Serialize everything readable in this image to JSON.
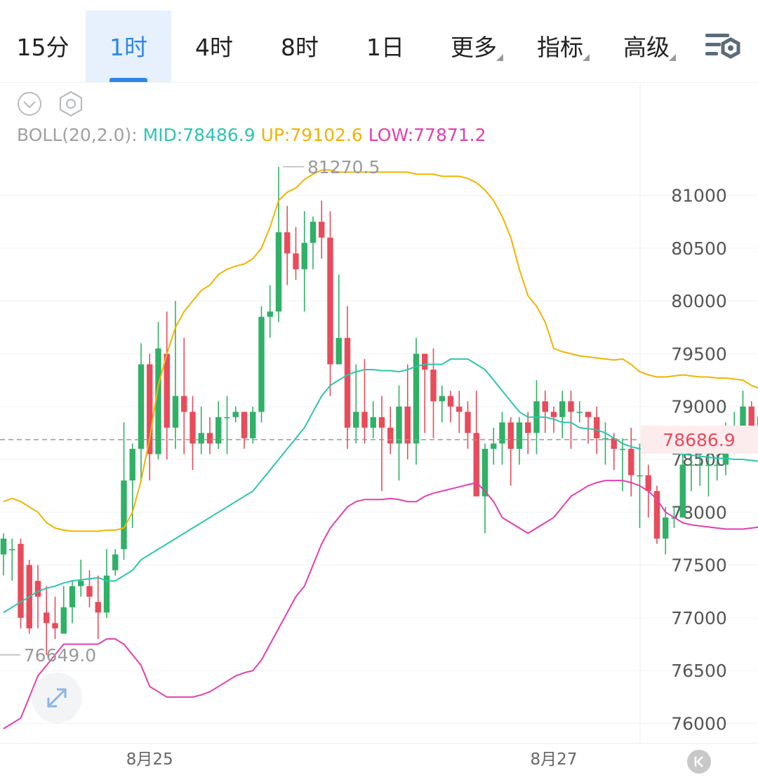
{
  "tabs": [
    {
      "label": "15分",
      "active": false,
      "dropdown": false
    },
    {
      "label": "1时",
      "active": true,
      "dropdown": false
    },
    {
      "label": "4时",
      "active": false,
      "dropdown": false
    },
    {
      "label": "8时",
      "active": false,
      "dropdown": false
    },
    {
      "label": "1日",
      "active": false,
      "dropdown": false
    },
    {
      "label": "更多",
      "active": false,
      "dropdown": true
    },
    {
      "label": "指标",
      "active": false,
      "dropdown": true
    },
    {
      "label": "高级",
      "active": false,
      "dropdown": true
    }
  ],
  "icons": {
    "settings": "chart-settings-icon",
    "collapse": "chevron-down-icon",
    "hexagon": "hexagon-settings-icon",
    "expand": "expand-icon",
    "scroll_latest": "scroll-to-latest-icon"
  },
  "boll": {
    "label": "BOLL(20,2.0):",
    "mid": "MID:78486.9",
    "up": "UP:79102.6",
    "low": "LOW:77871.2"
  },
  "colors": {
    "up_candle": "#2fb166",
    "down_candle": "#e84b5a",
    "mid": "#2cc5b0",
    "upper": "#f0b400",
    "lower": "#e040b0",
    "active_tab": "#2f86e9",
    "price_tag": "#e84b5a"
  },
  "chart_data": {
    "type": "candlestick",
    "indicator": "BOLL(20,2.0)",
    "y_ticks": [
      76000,
      76500,
      77000,
      77500,
      78000,
      78500,
      79000,
      79500,
      80000,
      80500,
      81000
    ],
    "x_labels": [
      "8月25",
      "8月27"
    ],
    "ylim": [
      75900,
      81500
    ],
    "current_price": 78686.9,
    "current_price_label": "78686.9",
    "high_marker": 81270.5,
    "high_label": "81270.5",
    "low_marker": 76649.0,
    "low_label": "76649.0",
    "candles": [
      [
        77600,
        77750,
        77400,
        77800
      ],
      [
        77650,
        77650,
        77350,
        77750
      ],
      [
        77700,
        77000,
        76900,
        77750
      ],
      [
        77500,
        76900,
        76850,
        77550
      ],
      [
        77350,
        77200,
        76900,
        77500
      ],
      [
        77050,
        76950,
        76650,
        77300
      ],
      [
        76950,
        76900,
        76800,
        77200
      ],
      [
        76850,
        77100,
        76850,
        77300
      ],
      [
        77100,
        77300,
        76950,
        77350
      ],
      [
        77300,
        77350,
        77200,
        77550
      ],
      [
        77300,
        77200,
        77100,
        77450
      ],
      [
        77150,
        77050,
        76800,
        77400
      ],
      [
        77050,
        77400,
        77000,
        77650
      ],
      [
        77450,
        77600,
        77400,
        77650
      ],
      [
        77650,
        78300,
        77550,
        78850
      ],
      [
        78300,
        78600,
        77850,
        78650
      ],
      [
        78600,
        79400,
        78300,
        79600
      ],
      [
        79400,
        78550,
        78300,
        79500
      ],
      [
        78550,
        79550,
        78500,
        79800
      ],
      [
        79500,
        78800,
        78500,
        79900
      ],
      [
        78800,
        79100,
        78600,
        80000
      ],
      [
        79100,
        78950,
        78550,
        79650
      ],
      [
        78950,
        78650,
        78400,
        79100
      ],
      [
        78650,
        78750,
        78550,
        79000
      ],
      [
        78750,
        78650,
        78550,
        78900
      ],
      [
        78650,
        78900,
        78600,
        79050
      ],
      [
        78900,
        78900,
        78550,
        79100
      ],
      [
        78900,
        78950,
        78850,
        79000
      ],
      [
        78950,
        78700,
        78600,
        78950
      ],
      [
        78700,
        78950,
        78650,
        79000
      ],
      [
        78950,
        79850,
        78850,
        79950
      ],
      [
        79850,
        79900,
        79650,
        80150
      ],
      [
        79900,
        80650,
        79800,
        81270.5
      ],
      [
        80650,
        80450,
        80150,
        80900
      ],
      [
        80450,
        80300,
        80200,
        80700
      ],
      [
        80300,
        80550,
        79900,
        80850
      ],
      [
        80550,
        80750,
        80300,
        80800
      ],
      [
        80750,
        80600,
        80400,
        80950
      ],
      [
        80600,
        79400,
        79100,
        80850
      ],
      [
        79400,
        79650,
        79400,
        80250
      ],
      [
        79650,
        78800,
        78600,
        79950
      ],
      [
        78800,
        78950,
        78650,
        79400
      ],
      [
        78950,
        78800,
        78650,
        79450
      ],
      [
        78800,
        78900,
        78700,
        79050
      ],
      [
        78900,
        78800,
        78200,
        79100
      ],
      [
        78800,
        78650,
        78550,
        79000
      ],
      [
        78650,
        79000,
        78300,
        79200
      ],
      [
        79000,
        78650,
        78500,
        79400
      ],
      [
        78650,
        79500,
        78450,
        79650
      ],
      [
        79500,
        79350,
        78750,
        79500
      ],
      [
        79350,
        79050,
        78700,
        79550
      ],
      [
        79050,
        79100,
        78850,
        79200
      ],
      [
        79100,
        79000,
        78850,
        79150
      ],
      [
        79000,
        78950,
        78750,
        79150
      ],
      [
        78950,
        78750,
        78600,
        79050
      ],
      [
        78750,
        78150,
        78150,
        79150
      ],
      [
        78150,
        78600,
        77800,
        78650
      ],
      [
        78600,
        78650,
        78450,
        78800
      ],
      [
        78650,
        78850,
        78450,
        78950
      ],
      [
        78850,
        78600,
        78250,
        78900
      ],
      [
        78600,
        78850,
        78450,
        78900
      ],
      [
        78850,
        78750,
        78550,
        78950
      ],
      [
        78750,
        79050,
        78550,
        79250
      ],
      [
        79050,
        78950,
        78750,
        79150
      ],
      [
        78950,
        78900,
        78750,
        79000
      ],
      [
        78900,
        79050,
        78700,
        79150
      ],
      [
        79050,
        78950,
        78600,
        79150
      ],
      [
        78950,
        78950,
        78850,
        79050
      ],
      [
        78950,
        78900,
        78650,
        78950
      ],
      [
        78900,
        78700,
        78550,
        79000
      ],
      [
        78700,
        78700,
        78450,
        78850
      ],
      [
        78700,
        78600,
        78400,
        78750
      ],
      [
        78600,
        78600,
        78200,
        78700
      ],
      [
        78600,
        78350,
        78150,
        78800
      ],
      [
        78350,
        78350,
        77850,
        78650
      ],
      [
        78350,
        78200,
        77950,
        78450
      ],
      [
        78200,
        77750,
        77700,
        78250
      ],
      [
        77750,
        77950,
        77600,
        78050
      ],
      [
        77950,
        77950,
        77850,
        78050
      ],
      [
        77950,
        78450,
        77950,
        78550
      ],
      [
        78450,
        78450,
        78200,
        78550
      ],
      [
        78450,
        78450,
        78250,
        78600
      ],
      [
        78450,
        78450,
        78150,
        78550
      ],
      [
        78450,
        78450,
        78300,
        78550
      ],
      [
        78450,
        78700,
        78350,
        78850
      ],
      [
        78700,
        78700,
        78550,
        78950
      ],
      [
        78700,
        79000,
        78650,
        79150
      ],
      [
        79000,
        78700,
        78650,
        79050
      ],
      [
        78700,
        78900,
        78600,
        79050
      ],
      [
        78900,
        78686.9,
        78650,
        78950
      ]
    ],
    "series": [
      {
        "name": "MID",
        "values": [
          77050,
          77100,
          77150,
          77200,
          77250,
          77280,
          77300,
          77330,
          77350,
          77360,
          77370,
          77380,
          77350,
          77350,
          77400,
          77450,
          77550,
          77600,
          77650,
          77700,
          77750,
          77800,
          77850,
          77900,
          77950,
          78000,
          78050,
          78100,
          78150,
          78200,
          78300,
          78400,
          78500,
          78600,
          78700,
          78800,
          78950,
          79100,
          79200,
          79250,
          79300,
          79330,
          79350,
          79350,
          79340,
          79340,
          79330,
          79350,
          79380,
          79400,
          79400,
          79400,
          79450,
          79450,
          79450,
          79400,
          79350,
          79250,
          79150,
          79050,
          78950,
          78900,
          78900,
          78900,
          78880,
          78850,
          78850,
          78800,
          78790,
          78780,
          78750,
          78700,
          78650,
          78620,
          78600,
          78580,
          78580,
          78570,
          78560,
          78550,
          78540,
          78530,
          78520,
          78510,
          78510,
          78500,
          78500,
          78490,
          78480,
          78470,
          78460,
          78460
        ]
      },
      {
        "name": "UP",
        "values": [
          78100,
          78130,
          78100,
          78050,
          78000,
          77900,
          77850,
          77830,
          77820,
          77820,
          77820,
          77820,
          77830,
          77830,
          77850,
          78000,
          78300,
          78700,
          79200,
          79500,
          79750,
          79900,
          80000,
          80100,
          80150,
          80250,
          80300,
          80330,
          80350,
          80400,
          80500,
          80700,
          80950,
          81030,
          81070,
          81150,
          81200,
          81240,
          81240,
          81220,
          81220,
          81220,
          81220,
          81220,
          81220,
          81220,
          81220,
          81220,
          81200,
          81200,
          81200,
          81180,
          81180,
          81180,
          81160,
          81120,
          81050,
          80950,
          80800,
          80600,
          80300,
          80050,
          79950,
          79800,
          79550,
          79520,
          79500,
          79480,
          79470,
          79460,
          79450,
          79440,
          79450,
          79400,
          79330,
          79300,
          79280,
          79280,
          79290,
          79300,
          79290,
          79280,
          79280,
          79270,
          79270,
          79260,
          79250,
          79200,
          79170,
          79150,
          79130,
          79100
        ]
      },
      {
        "name": "LOW",
        "values": [
          75950,
          76000,
          76050,
          76250,
          76450,
          76550,
          76650,
          76750,
          76750,
          76750,
          76750,
          76750,
          76800,
          76800,
          76750,
          76650,
          76550,
          76350,
          76300,
          76250,
          76250,
          76250,
          76250,
          76270,
          76300,
          76350,
          76400,
          76450,
          76480,
          76500,
          76600,
          76750,
          76900,
          77050,
          77200,
          77300,
          77500,
          77700,
          77850,
          77950,
          78050,
          78100,
          78120,
          78120,
          78120,
          78130,
          78120,
          78100,
          78100,
          78150,
          78180,
          78200,
          78220,
          78240,
          78260,
          78280,
          78200,
          78100,
          77950,
          77900,
          77850,
          77800,
          77850,
          77900,
          77950,
          78050,
          78150,
          78200,
          78250,
          78280,
          78300,
          78300,
          78300,
          78280,
          78250,
          78200,
          78120,
          78000,
          77950,
          77900,
          77880,
          77870,
          77860,
          77850,
          77840,
          77840,
          77840,
          77850,
          77860,
          77860,
          77870,
          77870
        ]
      }
    ]
  }
}
